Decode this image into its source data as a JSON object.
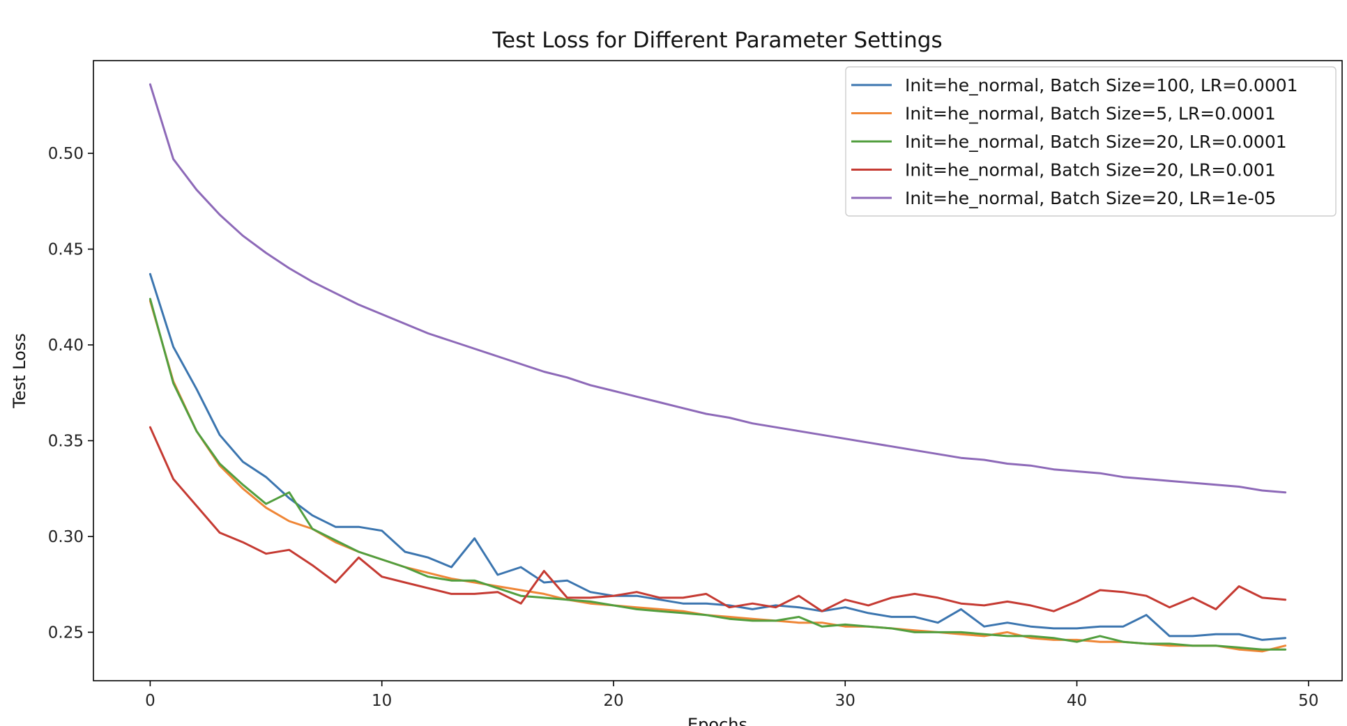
{
  "chart_data": {
    "type": "line",
    "title": "Test Loss for Different Parameter Settings",
    "xlabel": "Epochs",
    "ylabel": "Test Loss",
    "xlim": [
      -2.45,
      51.45
    ],
    "ylim": [
      0.2247,
      0.5484
    ],
    "xticks": [
      0,
      10,
      20,
      30,
      40,
      50
    ],
    "yticks": [
      0.25,
      0.3,
      0.35,
      0.4,
      0.45,
      0.5
    ],
    "ytick_labels": [
      "0.25",
      "0.30",
      "0.35",
      "0.40",
      "0.45",
      "0.50"
    ],
    "grid": false,
    "legend_position": "top-right",
    "x": [
      0,
      1,
      2,
      3,
      4,
      5,
      6,
      7,
      8,
      9,
      10,
      11,
      12,
      13,
      14,
      15,
      16,
      17,
      18,
      19,
      20,
      21,
      22,
      23,
      24,
      25,
      26,
      27,
      28,
      29,
      30,
      31,
      32,
      33,
      34,
      35,
      36,
      37,
      38,
      39,
      40,
      41,
      42,
      43,
      44,
      45,
      46,
      47,
      48,
      49
    ],
    "series": [
      {
        "name": "Init=he_normal, Batch Size=100, LR=0.0001",
        "color": "#3b75af",
        "values": [
          0.437,
          0.399,
          0.377,
          0.353,
          0.339,
          0.331,
          0.32,
          0.311,
          0.305,
          0.305,
          0.303,
          0.292,
          0.289,
          0.284,
          0.299,
          0.28,
          0.284,
          0.276,
          0.277,
          0.271,
          0.269,
          0.269,
          0.267,
          0.265,
          0.265,
          0.264,
          0.262,
          0.264,
          0.263,
          0.261,
          0.263,
          0.26,
          0.258,
          0.258,
          0.255,
          0.262,
          0.253,
          0.255,
          0.253,
          0.252,
          0.252,
          0.253,
          0.253,
          0.259,
          0.248,
          0.248,
          0.249,
          0.249,
          0.246,
          0.247
        ]
      },
      {
        "name": "Init=he_normal, Batch Size=5, LR=0.0001",
        "color": "#ef8636",
        "values": [
          0.423,
          0.381,
          0.355,
          0.337,
          0.325,
          0.315,
          0.308,
          0.304,
          0.297,
          0.292,
          0.288,
          0.284,
          0.281,
          0.278,
          0.276,
          0.274,
          0.272,
          0.27,
          0.267,
          0.265,
          0.264,
          0.263,
          0.262,
          0.261,
          0.259,
          0.258,
          0.257,
          0.256,
          0.255,
          0.255,
          0.253,
          0.253,
          0.252,
          0.251,
          0.25,
          0.249,
          0.248,
          0.25,
          0.247,
          0.246,
          0.246,
          0.245,
          0.245,
          0.244,
          0.243,
          0.243,
          0.243,
          0.241,
          0.24,
          0.243
        ]
      },
      {
        "name": "Init=he_normal, Batch Size=20, LR=0.0001",
        "color": "#519e3e",
        "values": [
          0.424,
          0.38,
          0.355,
          0.338,
          0.327,
          0.317,
          0.323,
          0.304,
          0.298,
          0.292,
          0.288,
          0.284,
          0.279,
          0.277,
          0.277,
          0.273,
          0.269,
          0.268,
          0.267,
          0.266,
          0.264,
          0.262,
          0.261,
          0.26,
          0.259,
          0.257,
          0.256,
          0.256,
          0.258,
          0.253,
          0.254,
          0.253,
          0.252,
          0.25,
          0.25,
          0.25,
          0.249,
          0.248,
          0.248,
          0.247,
          0.245,
          0.248,
          0.245,
          0.244,
          0.244,
          0.243,
          0.243,
          0.242,
          0.241,
          0.241
        ]
      },
      {
        "name": "Init=he_normal, Batch Size=20, LR=0.001",
        "color": "#c53a32",
        "values": [
          0.357,
          0.33,
          0.316,
          0.302,
          0.297,
          0.291,
          0.293,
          0.285,
          0.276,
          0.289,
          0.279,
          0.276,
          0.273,
          0.27,
          0.27,
          0.271,
          0.265,
          0.282,
          0.268,
          0.268,
          0.269,
          0.271,
          0.268,
          0.268,
          0.27,
          0.263,
          0.265,
          0.263,
          0.269,
          0.261,
          0.267,
          0.264,
          0.268,
          0.27,
          0.268,
          0.265,
          0.264,
          0.266,
          0.264,
          0.261,
          0.266,
          0.272,
          0.271,
          0.269,
          0.263,
          0.268,
          0.262,
          0.274,
          0.268,
          0.267
        ]
      },
      {
        "name": "Init=he_normal, Batch Size=20, LR=1e-05",
        "color": "#8d69b8",
        "values": [
          0.536,
          0.497,
          0.481,
          0.468,
          0.457,
          0.448,
          0.44,
          0.433,
          0.427,
          0.421,
          0.416,
          0.411,
          0.406,
          0.402,
          0.398,
          0.394,
          0.39,
          0.386,
          0.383,
          0.379,
          0.376,
          0.373,
          0.37,
          0.367,
          0.364,
          0.362,
          0.359,
          0.357,
          0.355,
          0.353,
          0.351,
          0.349,
          0.347,
          0.345,
          0.343,
          0.341,
          0.34,
          0.338,
          0.337,
          0.335,
          0.334,
          0.333,
          0.331,
          0.33,
          0.329,
          0.328,
          0.327,
          0.326,
          0.324,
          0.323
        ]
      }
    ]
  }
}
